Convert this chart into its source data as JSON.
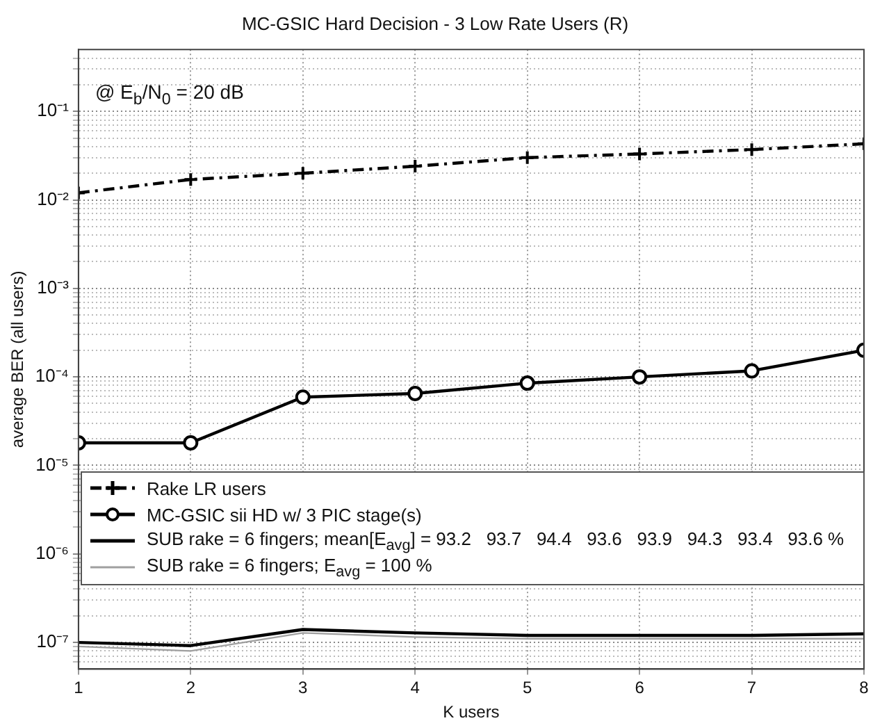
{
  "chart_data": {
    "type": "line",
    "title": "MC-GSIC Hard Decision - 3 Low Rate Users (R)",
    "xlabel": "K users",
    "ylabel": "average BER (all users)",
    "annotations": [
      "@ E$_{b}$/N$_{0}$ = 20 dB"
    ],
    "x": [
      1,
      2,
      3,
      4,
      5,
      6,
      7,
      8
    ],
    "series": [
      {
        "name": "Rake LR users",
        "color": "#000000",
        "marker": "cross",
        "line_style": "dashed",
        "values": [
          0.012,
          0.017,
          0.02,
          0.024,
          0.03,
          0.033,
          0.037,
          0.043
        ]
      },
      {
        "name": "MC-GSIC sii HD w/ 3 PIC stage(s)",
        "color": "#000000",
        "marker": "circle",
        "line_style": "solid",
        "values": [
          1.8e-05,
          1.8e-05,
          5.9e-05,
          6.5e-05,
          8.5e-05,
          0.0001,
          0.000117,
          0.0002
        ]
      },
      {
        "name": "SUB rake = 6 fingers; mean[E$_{avg}$] = 93.2   93.7   94.4   93.6   93.9   94.3   93.4   93.6 %",
        "color": "#000000",
        "marker": "none",
        "line_style": "solid",
        "values": [
          1e-07,
          9.2e-08,
          1.4e-07,
          1.28e-07,
          1.2e-07,
          1.2e-07,
          1.2e-07,
          1.25e-07
        ]
      },
      {
        "name": "SUB rake = 6 fingers; E$_{avg}$ = 100 %",
        "color": "#a0a0a0",
        "marker": "none",
        "line_style": "solid",
        "values": [
          9e-08,
          8e-08,
          1.28e-07,
          1.15e-07,
          1.1e-07,
          1.1e-07,
          1.1e-07,
          1.1e-07
        ]
      }
    ],
    "log": "y",
    "grid": true,
    "legend": "bottom",
    "xlim": [
      1,
      8
    ],
    "xticks": [
      1,
      2,
      3,
      4,
      5,
      6,
      7,
      8
    ],
    "ylim": [
      5e-08,
      0.5
    ],
    "yticks": [
      {
        "value": 6e-08,
        "label": null
      },
      {
        "value": 7e-08,
        "label": null
      },
      {
        "value": 8e-08,
        "label": null
      },
      {
        "value": 9e-08,
        "label": null
      },
      {
        "value": 1e-07,
        "label": "10⁻⁷"
      },
      {
        "value": 2e-07,
        "label": null
      },
      {
        "value": 3e-07,
        "label": null
      },
      {
        "value": 4e-07,
        "label": null
      },
      {
        "value": 5e-07,
        "label": null
      },
      {
        "value": 6e-07,
        "label": null
      },
      {
        "value": 7e-07,
        "label": null
      },
      {
        "value": 8e-07,
        "label": null
      },
      {
        "value": 9e-07,
        "label": null
      },
      {
        "value": 1e-06,
        "label": "10⁻⁶"
      },
      {
        "value": 2e-06,
        "label": null
      },
      {
        "value": 3e-06,
        "label": null
      },
      {
        "value": 4e-06,
        "label": null
      },
      {
        "value": 5e-06,
        "label": null
      },
      {
        "value": 6e-06,
        "label": null
      },
      {
        "value": 7e-06,
        "label": null
      },
      {
        "value": 8e-06,
        "label": null
      },
      {
        "value": 9e-06,
        "label": null
      },
      {
        "value": 1e-05,
        "label": "10⁻⁵"
      },
      {
        "value": 2e-05,
        "label": null
      },
      {
        "value": 3e-05,
        "label": null
      },
      {
        "value": 4e-05,
        "label": null
      },
      {
        "value": 5e-05,
        "label": null
      },
      {
        "value": 6e-05,
        "label": null
      },
      {
        "value": 7e-05,
        "label": null
      },
      {
        "value": 8e-05,
        "label": null
      },
      {
        "value": 9e-05,
        "label": null
      },
      {
        "value": 0.0001,
        "label": "10⁻⁴"
      },
      {
        "value": 0.0002,
        "label": null
      },
      {
        "value": 0.0003,
        "label": null
      },
      {
        "value": 0.0004,
        "label": null
      },
      {
        "value": 0.0005,
        "label": null
      },
      {
        "value": 0.0006,
        "label": null
      },
      {
        "value": 0.0007,
        "label": null
      },
      {
        "value": 0.0008,
        "label": null
      },
      {
        "value": 0.0009,
        "label": null
      },
      {
        "value": 0.001,
        "label": "10⁻³"
      },
      {
        "value": 0.002,
        "label": null
      },
      {
        "value": 0.003,
        "label": null
      },
      {
        "value": 0.004,
        "label": null
      },
      {
        "value": 0.005,
        "label": null
      },
      {
        "value": 0.006,
        "label": null
      },
      {
        "value": 0.007,
        "label": null
      },
      {
        "value": 0.008,
        "label": null
      },
      {
        "value": 0.009,
        "label": null
      },
      {
        "value": 0.01,
        "label": "10⁻²"
      },
      {
        "value": 0.02,
        "label": null
      },
      {
        "value": 0.03,
        "label": null
      },
      {
        "value": 0.04,
        "label": null
      },
      {
        "value": 0.05,
        "label": null
      },
      {
        "value": 0.06,
        "label": null
      },
      {
        "value": 0.07,
        "label": null
      },
      {
        "value": 0.08,
        "label": null
      },
      {
        "value": 0.09,
        "label": null
      },
      {
        "value": 0.1,
        "label": "10⁻¹"
      },
      {
        "value": 0.2,
        "label": null
      },
      {
        "value": 0.3,
        "label": null
      },
      {
        "value": 0.4,
        "label": null
      }
    ]
  }
}
